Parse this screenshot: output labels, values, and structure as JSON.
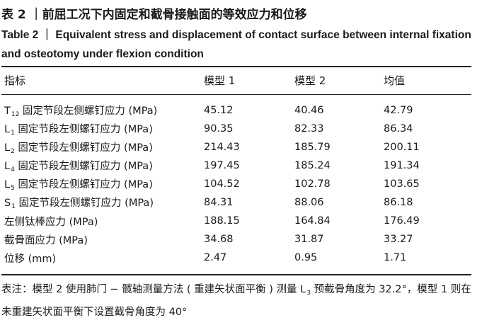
{
  "caption": {
    "cn": "表 2 ｜前屈工况下内固定和截骨接触面的等效应力和位移",
    "en": "Table 2 ｜ Equivalent stress and displacement of contact surface between internal fixation and osteotomy under flexion condition"
  },
  "table": {
    "headers": [
      "指标",
      "模型 1",
      "模型 2",
      "均值"
    ],
    "rows": [
      {
        "prefix": "T",
        "sub": "12",
        "label": " 固定节段左侧螺钉应力 (MPa)",
        "values": [
          "45.12",
          "40.46",
          "42.79"
        ]
      },
      {
        "prefix": "L",
        "sub": "1",
        "label": " 固定节段左侧螺钉应力 (MPa)",
        "values": [
          "90.35",
          "82.33",
          "86.34"
        ]
      },
      {
        "prefix": "L",
        "sub": "2",
        "label": " 固定节段左侧螺钉应力 (MPa)",
        "values": [
          "214.43",
          "185.79",
          "200.11"
        ]
      },
      {
        "prefix": "L",
        "sub": "4",
        "label": " 固定节段左侧螺钉应力 (MPa)",
        "values": [
          "197.45",
          "185.24",
          "191.34"
        ]
      },
      {
        "prefix": "L",
        "sub": "5",
        "label": " 固定节段左侧螺钉应力 (MPa)",
        "values": [
          "104.52",
          "102.78",
          "103.65"
        ]
      },
      {
        "prefix": "S",
        "sub": "1",
        "label": " 固定节段左侧螺钉应力 (MPa)",
        "values": [
          "84.31",
          "88.06",
          "86.18"
        ]
      },
      {
        "prefix": "",
        "sub": "",
        "label": "左侧钛棒应力 (MPa)",
        "values": [
          "188.15",
          "164.84",
          "176.49"
        ]
      },
      {
        "prefix": "",
        "sub": "",
        "label": "截骨面应力 (MPa)",
        "values": [
          "34.68",
          "31.87",
          "33.27"
        ]
      },
      {
        "prefix": "",
        "sub": "",
        "label": "位移 (mm)",
        "values": [
          "2.47",
          "0.95",
          "1.71"
        ]
      }
    ]
  },
  "note": {
    "part1": "表注：模型 2 使用肺门 − 髋轴测量方法 ( 重建矢状面平衡 ) 测量 L",
    "sub": "3",
    "part2": " 预截骨角度为 32.2°，模型 1 则在未重建矢状面平衡下设置截骨角度为 40°"
  }
}
